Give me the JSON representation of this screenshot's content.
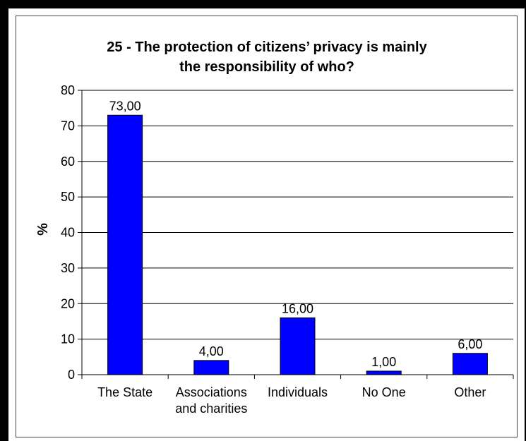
{
  "chart_data": {
    "type": "bar",
    "title_lines": [
      "25 - The protection of citizens’ privacy is mainly",
      "the responsibility of who?"
    ],
    "xlabel": "",
    "ylabel": "%",
    "ylim": [
      0,
      80
    ],
    "yticks": [
      "0",
      "10",
      "20",
      "30",
      "40",
      "50",
      "60",
      "70",
      "80"
    ],
    "grid": true,
    "legend": "none",
    "bar_color": "#0000FF",
    "categories": [
      [
        "The State"
      ],
      [
        "Associations",
        "and charities"
      ],
      [
        "Individuals"
      ],
      [
        "No One"
      ],
      [
        "Other"
      ]
    ],
    "values": [
      73,
      4,
      16,
      1,
      6
    ],
    "value_labels": [
      "73,00",
      "4,00",
      "16,00",
      "1,00",
      "6,00"
    ]
  }
}
